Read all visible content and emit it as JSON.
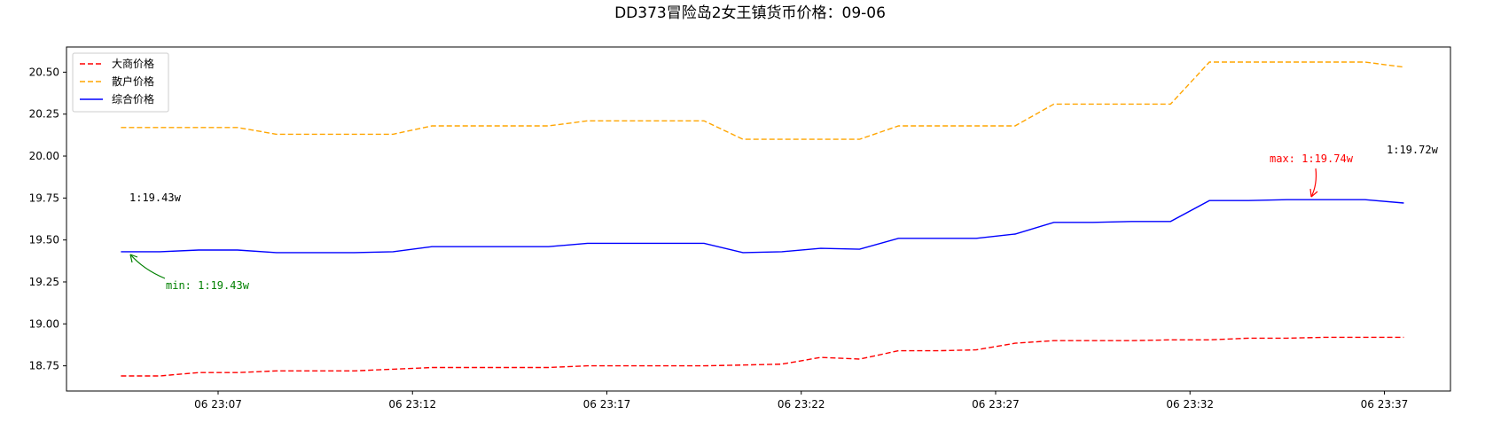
{
  "chart_data": {
    "type": "line",
    "title": "DD373冒险岛2女王镇货币价格：09-06",
    "xlabel": "",
    "ylabel": "",
    "ylim": [
      18.6,
      20.65
    ],
    "yticks": [
      "18.75",
      "19.00",
      "19.25",
      "19.50",
      "19.75",
      "20.00",
      "20.25",
      "20.50"
    ],
    "ytick_values": [
      18.75,
      19.0,
      19.25,
      19.5,
      19.75,
      20.0,
      20.25,
      20.5
    ],
    "xticks": [
      {
        "t": 0,
        "label": "06 23:07"
      },
      {
        "t": 5,
        "label": "06 23:12"
      },
      {
        "t": 10,
        "label": "06 23:17"
      },
      {
        "t": 15,
        "label": "06 23:22"
      },
      {
        "t": 20,
        "label": "06 23:27"
      },
      {
        "t": 25,
        "label": "06 23:32"
      },
      {
        "t": 30,
        "label": "06 23:37"
      }
    ],
    "xlim": [
      -3.9,
      31.7
    ],
    "x_minutes": [
      -2.5,
      -1.5,
      -0.5,
      0.5,
      1.5,
      2.5,
      3.5,
      4.5,
      5.5,
      6.5,
      7.5,
      8.5,
      9.5,
      10.5,
      11.5,
      12.5,
      13.5,
      14.5,
      15.5,
      16.5,
      17.5,
      18.5,
      19.5,
      20.5,
      21.5,
      22.5,
      23.5,
      24.5,
      25.5,
      26.5,
      27.5,
      28.5,
      29.5,
      30.5
    ],
    "legend_position": "top-left",
    "grid": false,
    "series": [
      {
        "name": "大商价格",
        "color": "#ff0000",
        "style": "dashed",
        "values": [
          18.69,
          18.69,
          18.71,
          18.71,
          18.72,
          18.72,
          18.72,
          18.73,
          18.74,
          18.74,
          18.74,
          18.74,
          18.75,
          18.75,
          18.75,
          18.75,
          18.755,
          18.76,
          18.8,
          18.79,
          18.84,
          18.84,
          18.845,
          18.885,
          18.9,
          18.9,
          18.9,
          18.905,
          18.905,
          18.915,
          18.915,
          18.92,
          18.92,
          18.92
        ]
      },
      {
        "name": "散户价格",
        "color": "#ffa500",
        "style": "dashed",
        "values": [
          20.17,
          20.17,
          20.17,
          20.17,
          20.13,
          20.13,
          20.13,
          20.13,
          20.18,
          20.18,
          20.18,
          20.18,
          20.21,
          20.21,
          20.21,
          20.21,
          20.1,
          20.1,
          20.1,
          20.1,
          20.18,
          20.18,
          20.18,
          20.18,
          20.31,
          20.31,
          20.31,
          20.31,
          20.56,
          20.56,
          20.56,
          20.56,
          20.56,
          20.53
        ]
      },
      {
        "name": "综合价格",
        "color": "#0000ff",
        "style": "solid",
        "values": [
          19.43,
          19.43,
          19.44,
          19.44,
          19.425,
          19.425,
          19.425,
          19.43,
          19.46,
          19.46,
          19.46,
          19.46,
          19.48,
          19.48,
          19.48,
          19.48,
          19.425,
          19.43,
          19.45,
          19.445,
          19.51,
          19.51,
          19.51,
          19.535,
          19.605,
          19.605,
          19.61,
          19.61,
          19.735,
          19.735,
          19.74,
          19.74,
          19.74,
          19.72
        ]
      }
    ],
    "annotations": {
      "start_label": "1:19.43w",
      "end_label": "1:19.72w",
      "min_label": "min: 1:19.43w",
      "max_label": "max: 1:19.74w",
      "min_color": "#008000",
      "max_color": "#ff0000"
    }
  }
}
